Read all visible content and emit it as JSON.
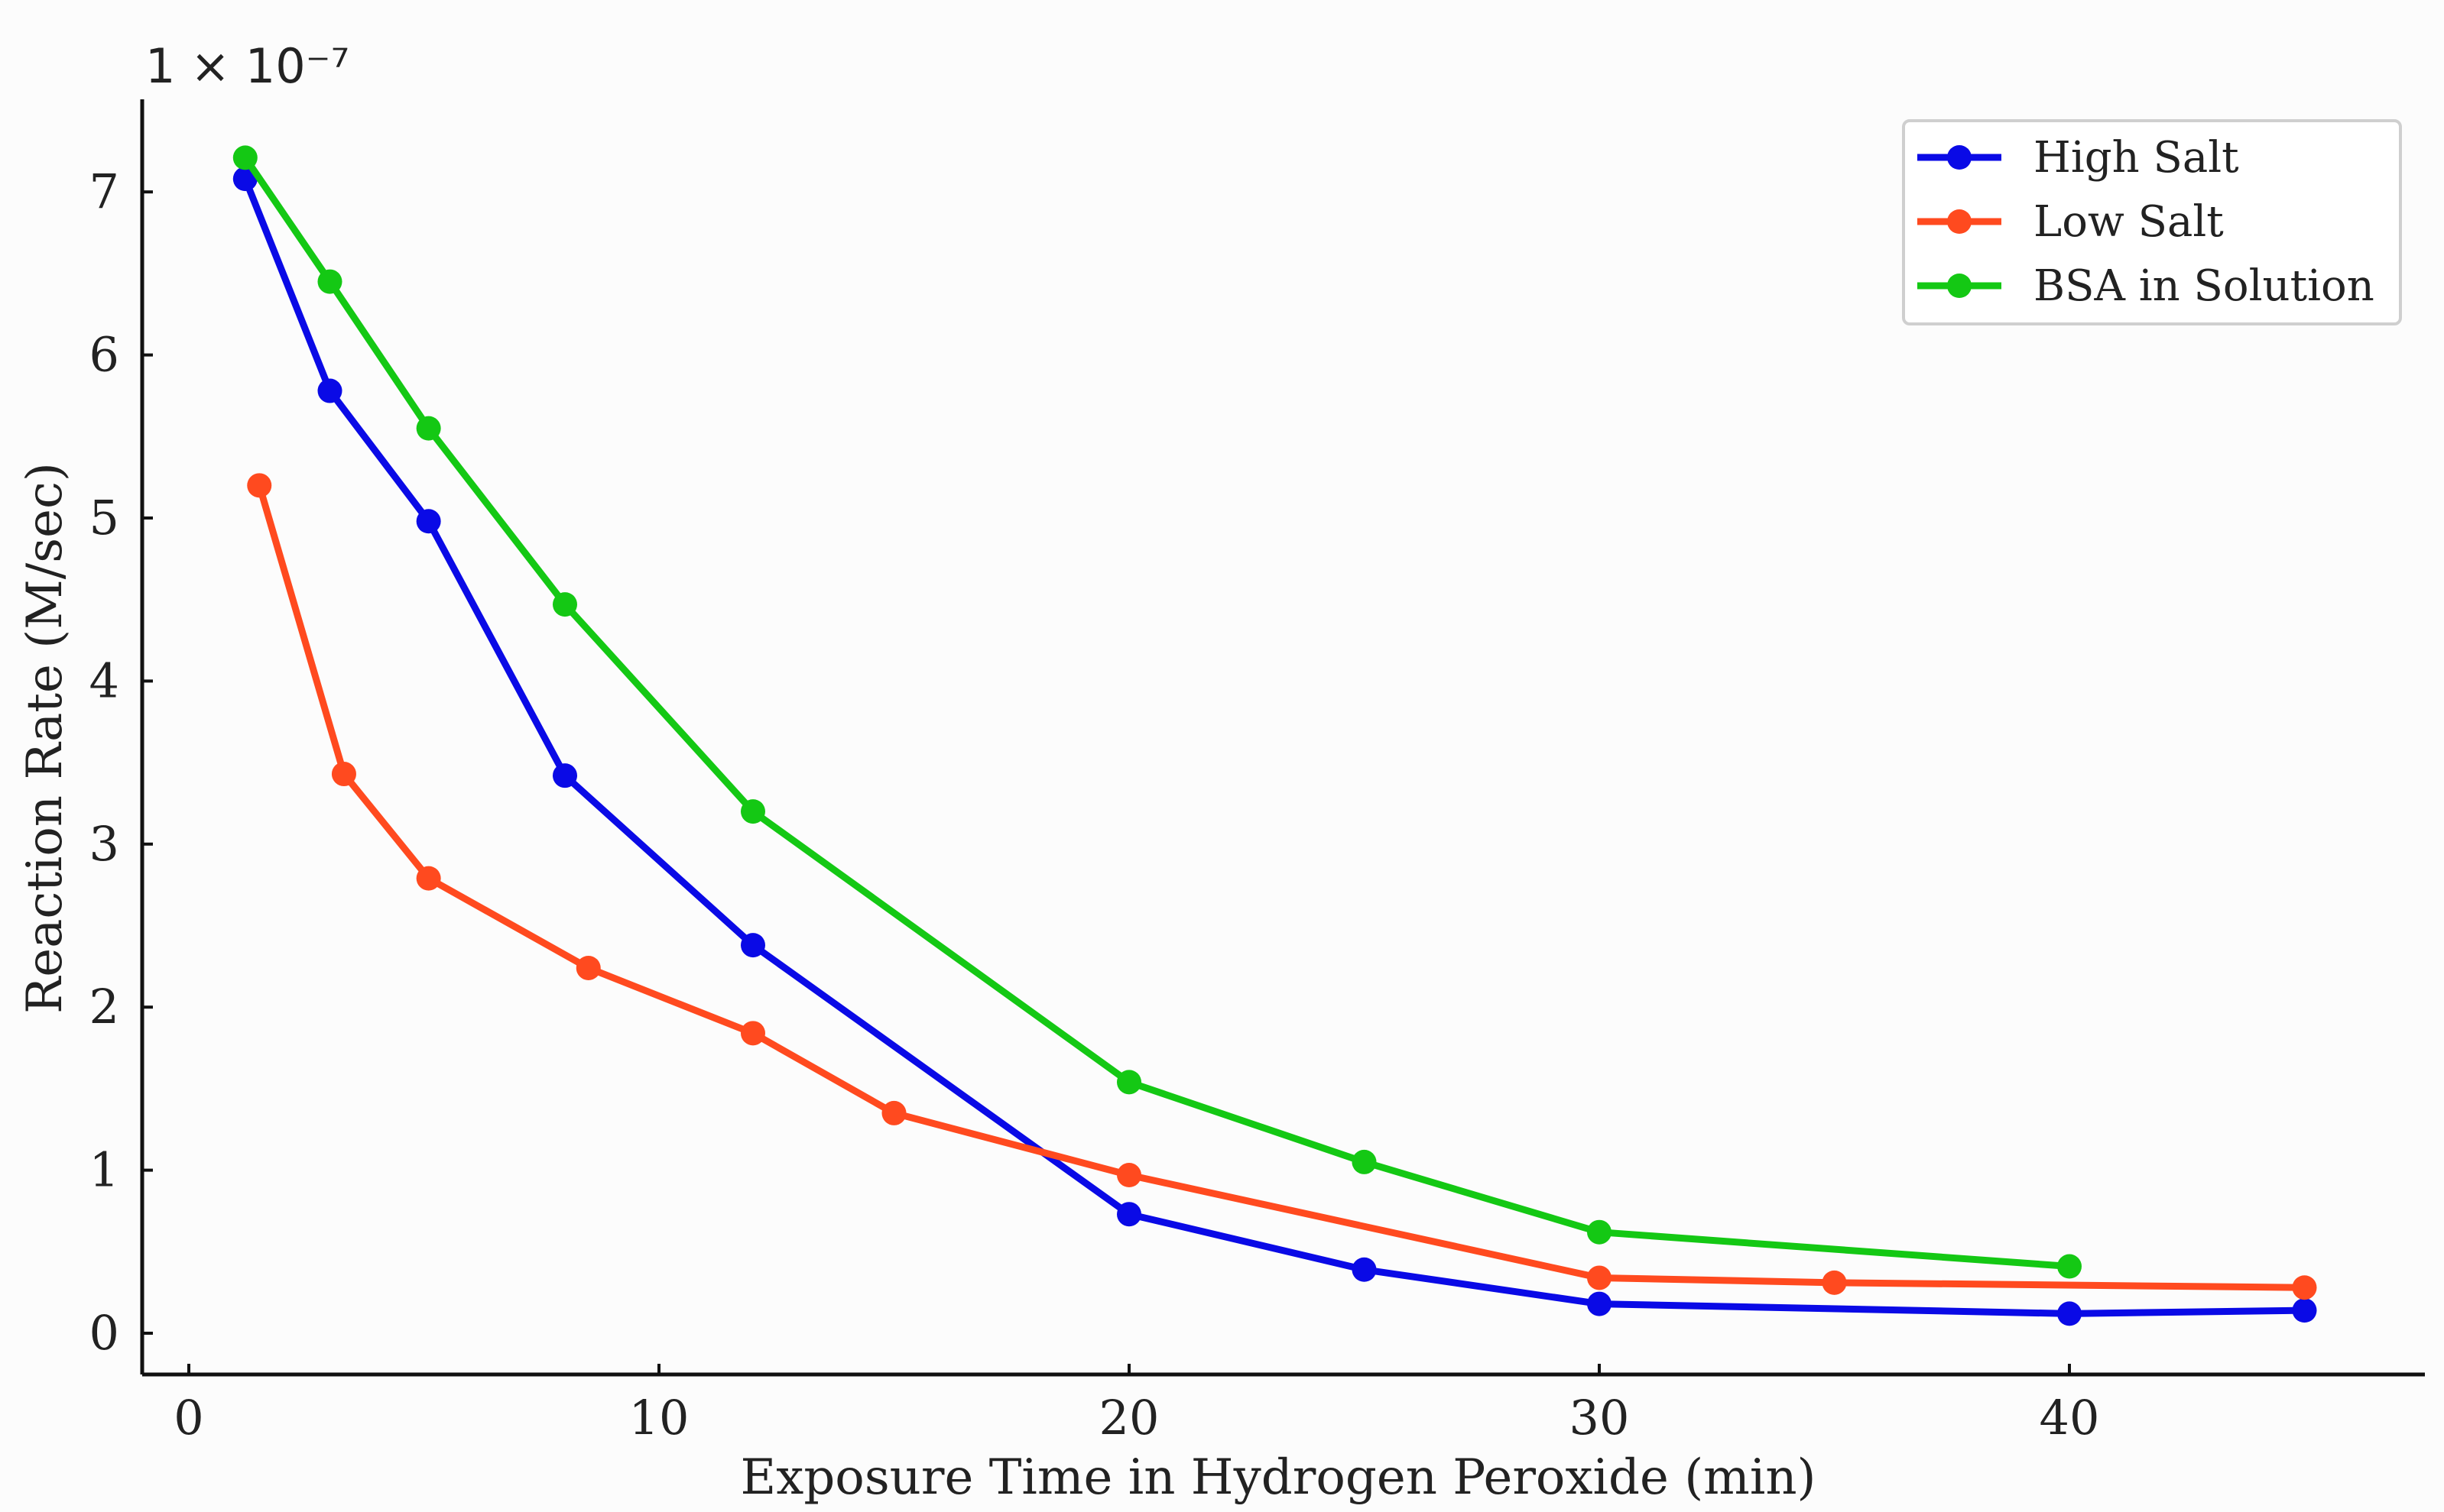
{
  "chart_data": {
    "type": "line",
    "xlabel": "Exposure Time in Hydrogen Peroxide (min)",
    "ylabel": "Reaction Rate (M/sec)",
    "y_multiplier": "1 × 10⁻⁷",
    "x_ticks": [
      "0",
      "10",
      "20",
      "30",
      "40"
    ],
    "y_ticks": [
      "0",
      "1",
      "2",
      "3",
      "4",
      "5",
      "6",
      "7"
    ],
    "xlim": [
      -1,
      47.5
    ],
    "ylim": [
      -0.25,
      7.55
    ],
    "legend_position": "top-right",
    "series": [
      {
        "name": "High Salt",
        "color": "#0a0ae6",
        "x": [
          1.2,
          3,
          5.1,
          8,
          12,
          20,
          25,
          30,
          40,
          45
        ],
        "y": [
          7.08,
          5.78,
          4.98,
          3.42,
          2.38,
          0.73,
          0.39,
          0.18,
          0.12,
          0.14
        ]
      },
      {
        "name": "Low Salt",
        "color": "#ff4a1f",
        "x": [
          1.5,
          3.3,
          5.1,
          8.5,
          12,
          15,
          20,
          30,
          35,
          45
        ],
        "y": [
          5.2,
          3.43,
          2.79,
          2.24,
          1.84,
          1.35,
          0.97,
          0.34,
          0.31,
          0.28
        ]
      },
      {
        "name": "BSA in Solution",
        "color": "#14c814",
        "x": [
          1.2,
          3,
          5.1,
          8,
          12,
          20,
          25,
          30,
          40
        ],
        "y": [
          7.21,
          6.45,
          5.55,
          4.47,
          3.2,
          1.54,
          1.05,
          0.62,
          0.41
        ]
      }
    ]
  }
}
